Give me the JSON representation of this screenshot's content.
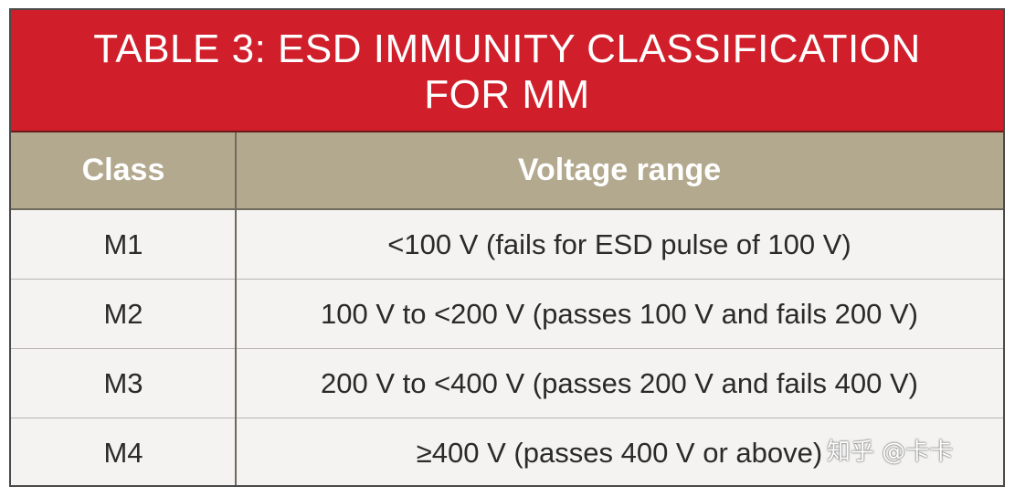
{
  "table": {
    "title_line1": "TABLE 3: ESD IMMUNITY CLASSIFICATION",
    "title_line2": "FOR MM",
    "headers": {
      "class": "Class",
      "range": "Voltage range"
    },
    "rows": [
      {
        "class": "M1",
        "range": "<100 V (fails for ESD pulse of 100 V)"
      },
      {
        "class": "M2",
        "range": "100 V to <200 V (passes 100 V and fails 200 V)"
      },
      {
        "class": "M3",
        "range": "200 V to <400 V (passes 200 V and fails 400 V)"
      },
      {
        "class": "M4",
        "range": "≥400 V (passes 400 V or above)"
      }
    ]
  },
  "watermark": "知乎 @卡卡",
  "colors": {
    "title_background": "#d01f2a",
    "header_background": "#b3a98e",
    "body_background": "#f4f3f2"
  }
}
